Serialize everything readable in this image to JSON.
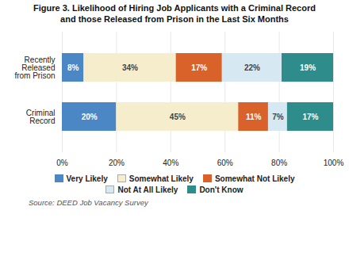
{
  "chart_data": {
    "type": "bar",
    "orientation": "horizontal",
    "stacked": true,
    "title": "Figure 3. Likelihood of Hiring Job Applicants with a Criminal Record\nand those Released from Prison in the Last Six Months",
    "caption": "Source: DEED Job Vacancy Survey",
    "categories": [
      "Recently\nReleased\nfrom Prison",
      "Criminal\nRecord"
    ],
    "series": [
      {
        "name": "Very Likely",
        "color": "#4B87C5",
        "values": [
          8,
          20
        ],
        "value_labels": [
          "8%",
          "20%"
        ]
      },
      {
        "name": "Somewhat Likely",
        "color": "#F5EDCC",
        "values": [
          34,
          45
        ],
        "value_labels": [
          "34%",
          "45%"
        ]
      },
      {
        "name": "Somewhat Not Likely",
        "color": "#D9622B",
        "values": [
          17,
          11
        ],
        "value_labels": [
          "17%",
          "11%"
        ]
      },
      {
        "name": "Not At All Likely",
        "color": "#D6E8F2",
        "values": [
          22,
          7
        ],
        "value_labels": [
          "22%",
          "7%"
        ]
      },
      {
        "name": "Don't Know",
        "color": "#2E8C8A",
        "values": [
          19,
          17
        ],
        "value_labels": [
          "19%",
          "17%"
        ]
      }
    ],
    "xlim": [
      0,
      100
    ],
    "xticks": [
      {
        "value": 0,
        "label": "0%"
      },
      {
        "value": 20,
        "label": "20%"
      },
      {
        "value": 40,
        "label": "40%"
      },
      {
        "value": 60,
        "label": "60%"
      },
      {
        "value": 80,
        "label": "80%"
      },
      {
        "value": 100,
        "label": "100%"
      }
    ],
    "grid": true,
    "data_labels": true,
    "legend": "bottom"
  }
}
